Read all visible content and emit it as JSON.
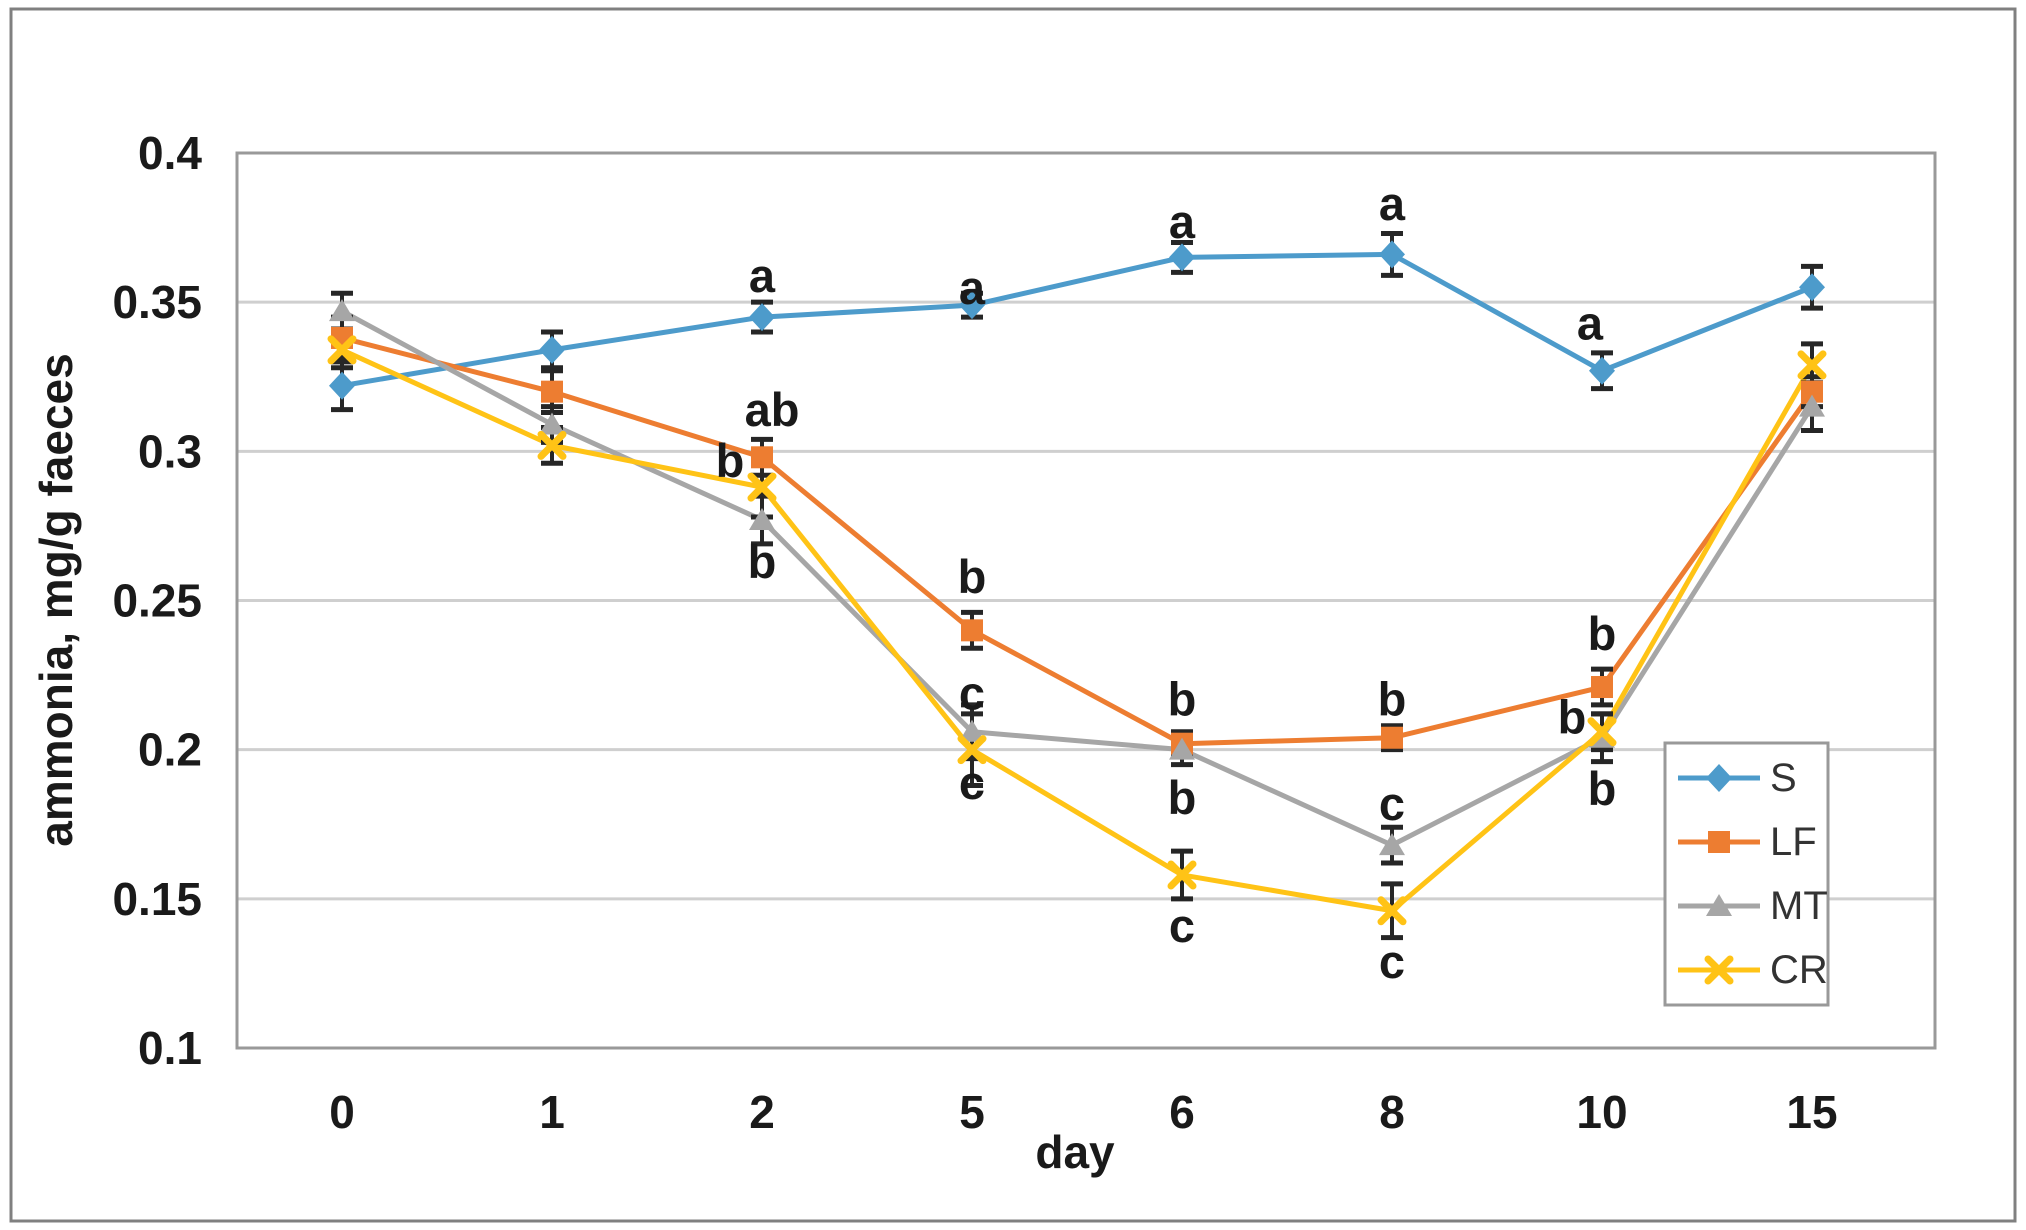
{
  "chart_data": {
    "type": "line",
    "title": "",
    "xlabel": "day",
    "ylabel": "ammonia, mg/g faeces",
    "categories": [
      "0",
      "1",
      "2",
      "5",
      "6",
      "8",
      "10",
      "15"
    ],
    "ylim": [
      0.1,
      0.4
    ],
    "y_ticks": [
      {
        "value": 0.1,
        "label": "0.1"
      },
      {
        "value": 0.15,
        "label": "0.15"
      },
      {
        "value": 0.2,
        "label": "0.2"
      },
      {
        "value": 0.25,
        "label": "0.25"
      },
      {
        "value": 0.3,
        "label": "0.3"
      },
      {
        "value": 0.35,
        "label": "0.35"
      },
      {
        "value": 0.4,
        "label": "0.4"
      }
    ],
    "grid": "horizontal",
    "legend_position": "inside-right",
    "series": [
      {
        "name": "S",
        "color": "#4D9BCB",
        "marker": "diamond",
        "values": [
          0.322,
          0.334,
          0.345,
          0.349,
          0.365,
          0.366,
          0.327,
          0.355
        ],
        "errors": [
          0.008,
          0.006,
          0.005,
          0.004,
          0.005,
          0.007,
          0.006,
          0.007
        ]
      },
      {
        "name": "LF",
        "color": "#ED7D31",
        "marker": "square",
        "values": [
          0.338,
          0.32,
          0.298,
          0.24,
          0.202,
          0.204,
          0.221,
          0.32
        ],
        "errors": [
          0.007,
          0.007,
          0.006,
          0.006,
          0.004,
          0.004,
          0.006,
          0.005
        ]
      },
      {
        "name": "MT",
        "color": "#A6A6A6",
        "marker": "triangle",
        "values": [
          0.347,
          0.309,
          0.277,
          0.206,
          0.2,
          0.168,
          0.204,
          0.315
        ],
        "errors": [
          0.006,
          0.006,
          0.008,
          0.009,
          0.005,
          0.006,
          0.008,
          0.008
        ]
      },
      {
        "name": "CR",
        "color": "#FFC316",
        "marker": "x",
        "values": [
          0.334,
          0.302,
          0.288,
          0.2,
          0.158,
          0.146,
          0.206,
          0.329
        ],
        "errors": [
          0.006,
          0.006,
          0.01,
          0.012,
          0.008,
          0.009,
          0.006,
          0.007
        ]
      }
    ],
    "annotations": [
      {
        "category": "2",
        "text": "a",
        "value": 0.359,
        "dx": 0
      },
      {
        "category": "2",
        "text": "ab",
        "value": 0.314,
        "dx": 10
      },
      {
        "category": "2",
        "text": "b",
        "value": 0.297,
        "dx": -32
      },
      {
        "category": "2",
        "text": "b",
        "value": 0.263,
        "dx": 0
      },
      {
        "category": "5",
        "text": "a",
        "value": 0.355,
        "dx": 0
      },
      {
        "category": "5",
        "text": "b",
        "value": 0.258,
        "dx": 0
      },
      {
        "category": "5",
        "text": "c",
        "value": 0.219,
        "dx": 0
      },
      {
        "category": "5",
        "text": "c",
        "value": 0.189,
        "dx": 0
      },
      {
        "category": "6",
        "text": "a",
        "value": 0.377,
        "dx": 0
      },
      {
        "category": "6",
        "text": "b",
        "value": 0.217,
        "dx": 0
      },
      {
        "category": "6",
        "text": "b",
        "value": 0.184,
        "dx": 0
      },
      {
        "category": "6",
        "text": "c",
        "value": 0.141,
        "dx": 0
      },
      {
        "category": "8",
        "text": "a",
        "value": 0.383,
        "dx": 0
      },
      {
        "category": "8",
        "text": "b",
        "value": 0.217,
        "dx": 0
      },
      {
        "category": "8",
        "text": "c",
        "value": 0.182,
        "dx": 0
      },
      {
        "category": "8",
        "text": "c",
        "value": 0.129,
        "dx": 0
      },
      {
        "category": "10",
        "text": "a",
        "value": 0.343,
        "dx": -12
      },
      {
        "category": "10",
        "text": "b",
        "value": 0.239,
        "dx": 0
      },
      {
        "category": "10",
        "text": "b",
        "value": 0.211,
        "dx": -30
      },
      {
        "category": "10",
        "text": "b",
        "value": 0.187,
        "dx": 0
      }
    ],
    "colors": {
      "error_bar": "#262626",
      "gridline": "#CFCFCF",
      "plot_border": "#999999",
      "outer_border": "#808080",
      "text": "#1A1A1A",
      "legend_text": "#333333"
    }
  }
}
